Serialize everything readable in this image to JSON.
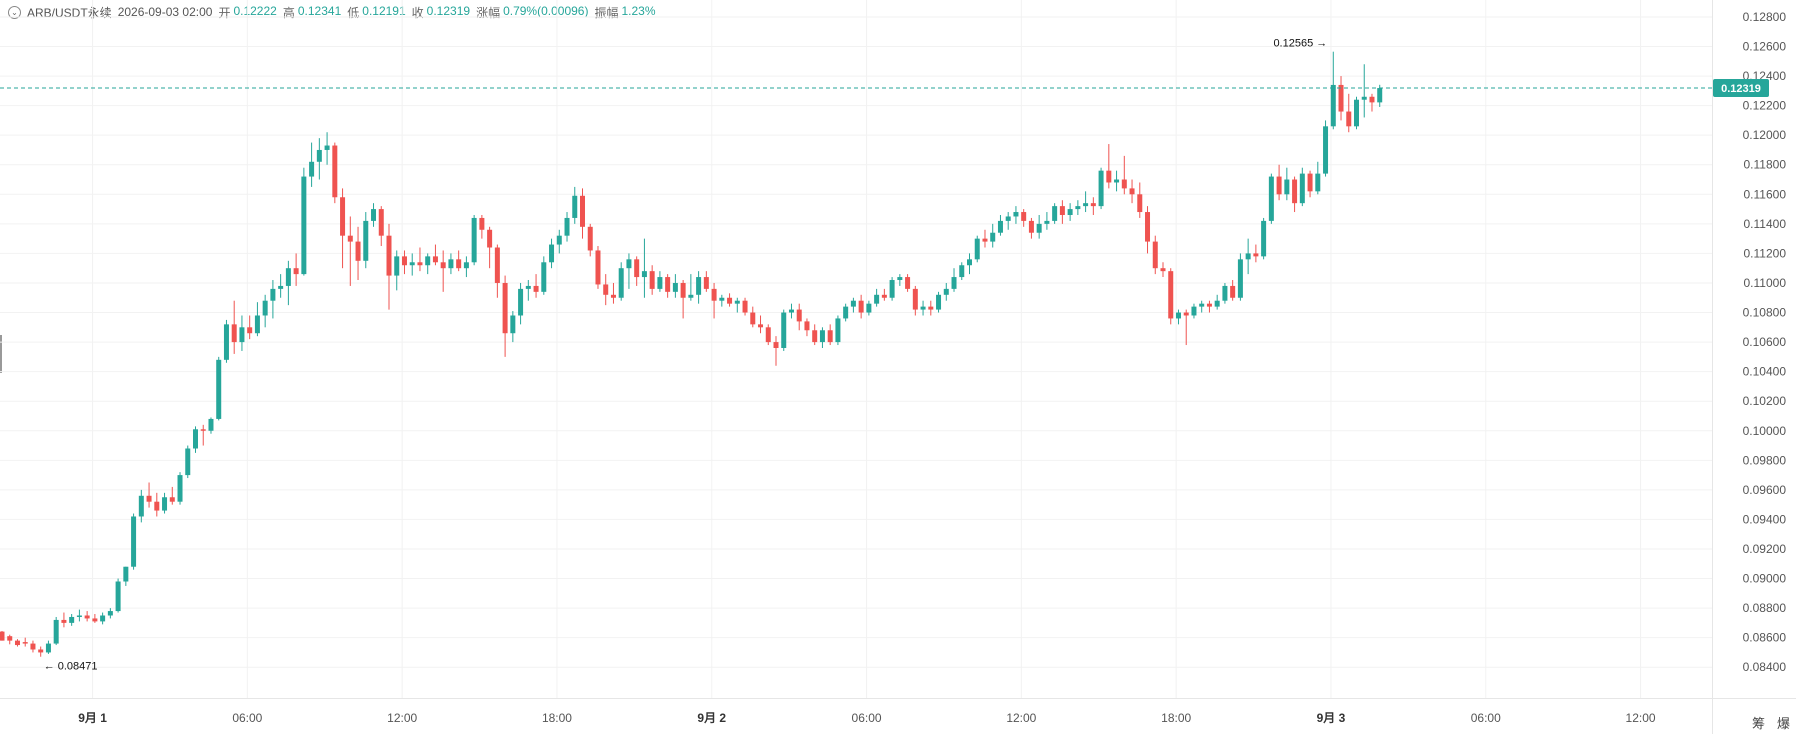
{
  "header": {
    "symbol": "ARB/USDT永续",
    "datetime": "2026-09-03 02:00",
    "open_label": "开",
    "open": "0.12222",
    "high_label": "高",
    "high": "0.12341",
    "low_label": "低",
    "low": "0.12191",
    "close_label": "收",
    "close": "0.12319",
    "change_label": "涨幅",
    "change": "0.79%(0.00096)",
    "amplitude_label": "振幅",
    "amplitude": "1.23%"
  },
  "axis_icons": {
    "left": "筹",
    "right": "爆"
  },
  "colors": {
    "up": "#26a69a",
    "down": "#ef5350",
    "grid": "#f2f2f2",
    "current": "#26a69a"
  },
  "chart_data": {
    "type": "candlestick",
    "interval": "1h",
    "y_axis": {
      "range": [
        0.083,
        0.1282
      ],
      "ticks": [
        "0.12800",
        "0.12600",
        "0.12400",
        "0.12200",
        "0.12000",
        "0.11800",
        "0.11600",
        "0.11400",
        "0.11200",
        "0.11000",
        "0.10800",
        "0.10600",
        "0.10400",
        "0.10200",
        "0.10000",
        "0.09800",
        "0.09600",
        "0.09400",
        "0.09200",
        "0.09000",
        "0.08800",
        "0.08600",
        "0.08400"
      ]
    },
    "x_axis": {
      "ticks": [
        {
          "label": "9月 1",
          "bold": true
        },
        {
          "label": "06:00",
          "bold": false
        },
        {
          "label": "12:00",
          "bold": false
        },
        {
          "label": "18:00",
          "bold": false
        },
        {
          "label": "9月 2",
          "bold": true
        },
        {
          "label": "06:00",
          "bold": false
        },
        {
          "label": "12:00",
          "bold": false
        },
        {
          "label": "18:00",
          "bold": false
        },
        {
          "label": "9月 3",
          "bold": true
        },
        {
          "label": "06:00",
          "bold": false
        },
        {
          "label": "12:00",
          "bold": false
        }
      ]
    },
    "current_price": "0.12319",
    "annotations": {
      "high": "0.12565",
      "low": "0.08471"
    },
    "candles": [
      [
        0.08641,
        0.08645,
        0.0858,
        0.0858
      ],
      [
        0.0861,
        0.0862,
        0.08555,
        0.0858
      ],
      [
        0.0858,
        0.0859,
        0.0854,
        0.0855
      ],
      [
        0.0857,
        0.086,
        0.0854,
        0.0856
      ],
      [
        0.0856,
        0.0858,
        0.085,
        0.0852
      ],
      [
        0.0852,
        0.0854,
        0.08471,
        0.085
      ],
      [
        0.085,
        0.0858,
        0.0849,
        0.0856
      ],
      [
        0.0856,
        0.0874,
        0.0855,
        0.0872
      ],
      [
        0.0872,
        0.0877,
        0.0867,
        0.087
      ],
      [
        0.087,
        0.0876,
        0.0868,
        0.0874
      ],
      [
        0.0874,
        0.0879,
        0.0871,
        0.0875
      ],
      [
        0.0875,
        0.0878,
        0.0871,
        0.0873
      ],
      [
        0.0873,
        0.0876,
        0.087,
        0.0871
      ],
      [
        0.0871,
        0.0877,
        0.0869,
        0.0875
      ],
      [
        0.0875,
        0.088,
        0.0873,
        0.0878
      ],
      [
        0.0878,
        0.09,
        0.0877,
        0.0898
      ],
      [
        0.0898,
        0.0908,
        0.0895,
        0.0908
      ],
      [
        0.0908,
        0.0944,
        0.0906,
        0.0942
      ],
      [
        0.0942,
        0.096,
        0.0938,
        0.0956
      ],
      [
        0.0956,
        0.0965,
        0.0948,
        0.0952
      ],
      [
        0.0952,
        0.0958,
        0.0942,
        0.0946
      ],
      [
        0.0946,
        0.0958,
        0.0944,
        0.0955
      ],
      [
        0.0955,
        0.0962,
        0.095,
        0.0952
      ],
      [
        0.0952,
        0.0972,
        0.095,
        0.097
      ],
      [
        0.097,
        0.099,
        0.0968,
        0.0988
      ],
      [
        0.0988,
        0.1003,
        0.0985,
        0.1001
      ],
      [
        0.1001,
        0.1004,
        0.099,
        0.1
      ],
      [
        0.1,
        0.1009,
        0.0998,
        0.1008
      ],
      [
        0.1008,
        0.105,
        0.1007,
        0.1048
      ],
      [
        0.1048,
        0.1075,
        0.1046,
        0.1072
      ],
      [
        0.1072,
        0.1088,
        0.1052,
        0.106
      ],
      [
        0.106,
        0.1078,
        0.1054,
        0.107
      ],
      [
        0.107,
        0.1078,
        0.1062,
        0.1066
      ],
      [
        0.1066,
        0.1087,
        0.1064,
        0.1078
      ],
      [
        0.1078,
        0.1092,
        0.107,
        0.1088
      ],
      [
        0.1088,
        0.1102,
        0.1076,
        0.1096
      ],
      [
        0.1096,
        0.1106,
        0.109,
        0.1098
      ],
      [
        0.1098,
        0.1115,
        0.1085,
        0.111
      ],
      [
        0.111,
        0.112,
        0.1098,
        0.1106
      ],
      [
        0.1106,
        0.1178,
        0.1105,
        0.1172
      ],
      [
        0.1172,
        0.1195,
        0.1165,
        0.1182
      ],
      [
        0.1182,
        0.1198,
        0.117,
        0.119
      ],
      [
        0.119,
        0.1202,
        0.118,
        0.1193
      ],
      [
        0.1193,
        0.1195,
        0.1154,
        0.1158
      ],
      [
        0.1158,
        0.1164,
        0.111,
        0.1132
      ],
      [
        0.1132,
        0.1145,
        0.1098,
        0.1128
      ],
      [
        0.1128,
        0.1138,
        0.1102,
        0.1115
      ],
      [
        0.1115,
        0.1148,
        0.111,
        0.1142
      ],
      [
        0.1142,
        0.1154,
        0.1138,
        0.115
      ],
      [
        0.115,
        0.1152,
        0.1125,
        0.1132
      ],
      [
        0.1132,
        0.114,
        0.1082,
        0.1105
      ],
      [
        0.1105,
        0.1122,
        0.1095,
        0.1118
      ],
      [
        0.1118,
        0.1122,
        0.1106,
        0.1112
      ],
      [
        0.1112,
        0.112,
        0.1105,
        0.1114
      ],
      [
        0.1114,
        0.1124,
        0.1108,
        0.1112
      ],
      [
        0.1112,
        0.112,
        0.1106,
        0.1118
      ],
      [
        0.1118,
        0.1126,
        0.1112,
        0.1114
      ],
      [
        0.1114,
        0.1122,
        0.1094,
        0.111
      ],
      [
        0.111,
        0.112,
        0.1106,
        0.1116
      ],
      [
        0.1116,
        0.1122,
        0.1108,
        0.111
      ],
      [
        0.111,
        0.1118,
        0.1104,
        0.1114
      ],
      [
        0.1114,
        0.1146,
        0.1112,
        0.1144
      ],
      [
        0.1144,
        0.1146,
        0.113,
        0.1136
      ],
      [
        0.1136,
        0.1138,
        0.111,
        0.1124
      ],
      [
        0.1124,
        0.1126,
        0.109,
        0.11
      ],
      [
        0.11,
        0.1105,
        0.105,
        0.1066
      ],
      [
        0.1066,
        0.1081,
        0.106,
        0.1078
      ],
      [
        0.1078,
        0.11,
        0.1072,
        0.1096
      ],
      [
        0.1096,
        0.1102,
        0.1088,
        0.1098
      ],
      [
        0.1098,
        0.1106,
        0.109,
        0.1094
      ],
      [
        0.1094,
        0.1118,
        0.1092,
        0.1114
      ],
      [
        0.1114,
        0.113,
        0.111,
        0.1126
      ],
      [
        0.1126,
        0.1136,
        0.112,
        0.1132
      ],
      [
        0.1132,
        0.1148,
        0.1128,
        0.1144
      ],
      [
        0.1144,
        0.1165,
        0.114,
        0.1159
      ],
      [
        0.1159,
        0.1164,
        0.113,
        0.1138
      ],
      [
        0.1138,
        0.114,
        0.1118,
        0.1122
      ],
      [
        0.1122,
        0.1125,
        0.1096,
        0.1099
      ],
      [
        0.1099,
        0.1106,
        0.1085,
        0.1092
      ],
      [
        0.1092,
        0.11,
        0.1086,
        0.109
      ],
      [
        0.109,
        0.1114,
        0.1088,
        0.111
      ],
      [
        0.111,
        0.112,
        0.1096,
        0.1116
      ],
      [
        0.1116,
        0.1118,
        0.1098,
        0.1104
      ],
      [
        0.1104,
        0.113,
        0.109,
        0.1108
      ],
      [
        0.1108,
        0.1112,
        0.1092,
        0.1096
      ],
      [
        0.1096,
        0.1108,
        0.1094,
        0.1104
      ],
      [
        0.1104,
        0.1106,
        0.109,
        0.1094
      ],
      [
        0.1094,
        0.1106,
        0.109,
        0.11
      ],
      [
        0.11,
        0.1102,
        0.1076,
        0.109
      ],
      [
        0.109,
        0.1106,
        0.1088,
        0.1092
      ],
      [
        0.1092,
        0.1108,
        0.1086,
        0.1104
      ],
      [
        0.1104,
        0.1108,
        0.1094,
        0.1096
      ],
      [
        0.1096,
        0.11,
        0.1076,
        0.1088
      ],
      [
        0.1088,
        0.1092,
        0.1084,
        0.109
      ],
      [
        0.109,
        0.1093,
        0.1084,
        0.1086
      ],
      [
        0.1086,
        0.109,
        0.108,
        0.1088
      ],
      [
        0.1088,
        0.109,
        0.1078,
        0.108
      ],
      [
        0.108,
        0.1084,
        0.107,
        0.1072
      ],
      [
        0.1072,
        0.1078,
        0.1066,
        0.107
      ],
      [
        0.107,
        0.1072,
        0.1058,
        0.106
      ],
      [
        0.106,
        0.1064,
        0.1044,
        0.1056
      ],
      [
        0.1056,
        0.1082,
        0.1054,
        0.108
      ],
      [
        0.108,
        0.1086,
        0.1076,
        0.1082
      ],
      [
        0.1082,
        0.1086,
        0.1068,
        0.1074
      ],
      [
        0.1074,
        0.1076,
        0.1064,
        0.1068
      ],
      [
        0.1068,
        0.1072,
        0.1058,
        0.106
      ],
      [
        0.106,
        0.107,
        0.1056,
        0.1068
      ],
      [
        0.1068,
        0.1072,
        0.1058,
        0.106
      ],
      [
        0.106,
        0.1078,
        0.1058,
        0.1076
      ],
      [
        0.1076,
        0.1086,
        0.1074,
        0.1084
      ],
      [
        0.1084,
        0.109,
        0.108,
        0.1088
      ],
      [
        0.1088,
        0.1092,
        0.1076,
        0.108
      ],
      [
        0.108,
        0.1088,
        0.1078,
        0.1086
      ],
      [
        0.1086,
        0.1096,
        0.1084,
        0.1092
      ],
      [
        0.1092,
        0.1096,
        0.1088,
        0.109
      ],
      [
        0.109,
        0.1104,
        0.1088,
        0.1102
      ],
      [
        0.1102,
        0.1106,
        0.1098,
        0.1104
      ],
      [
        0.1104,
        0.1106,
        0.1094,
        0.1096
      ],
      [
        0.1096,
        0.1098,
        0.1078,
        0.1082
      ],
      [
        0.1082,
        0.1088,
        0.1078,
        0.1084
      ],
      [
        0.1084,
        0.1088,
        0.1078,
        0.1082
      ],
      [
        0.1082,
        0.1094,
        0.108,
        0.1092
      ],
      [
        0.1092,
        0.11,
        0.1088,
        0.1096
      ],
      [
        0.1096,
        0.111,
        0.1094,
        0.1104
      ],
      [
        0.1104,
        0.1114,
        0.1102,
        0.1112
      ],
      [
        0.1112,
        0.112,
        0.1106,
        0.1116
      ],
      [
        0.1116,
        0.1132,
        0.1114,
        0.113
      ],
      [
        0.113,
        0.1136,
        0.1124,
        0.1128
      ],
      [
        0.1128,
        0.114,
        0.1124,
        0.1134
      ],
      [
        0.1134,
        0.1146,
        0.1132,
        0.1142
      ],
      [
        0.1142,
        0.1148,
        0.1136,
        0.1145
      ],
      [
        0.1145,
        0.1152,
        0.114,
        0.1148
      ],
      [
        0.1148,
        0.115,
        0.1138,
        0.1142
      ],
      [
        0.1142,
        0.1144,
        0.113,
        0.1134
      ],
      [
        0.1134,
        0.1146,
        0.113,
        0.114
      ],
      [
        0.114,
        0.1148,
        0.1136,
        0.1142
      ],
      [
        0.1142,
        0.1154,
        0.114,
        0.1152
      ],
      [
        0.1152,
        0.1156,
        0.114,
        0.1146
      ],
      [
        0.1146,
        0.1154,
        0.1142,
        0.115
      ],
      [
        0.115,
        0.1156,
        0.1146,
        0.1152
      ],
      [
        0.1152,
        0.1162,
        0.1148,
        0.1154
      ],
      [
        0.1154,
        0.1158,
        0.1146,
        0.1152
      ],
      [
        0.1152,
        0.1178,
        0.115,
        0.1176
      ],
      [
        0.1176,
        0.1194,
        0.1164,
        0.1168
      ],
      [
        0.1168,
        0.1176,
        0.1162,
        0.117
      ],
      [
        0.117,
        0.1186,
        0.116,
        0.1164
      ],
      [
        0.1164,
        0.117,
        0.1154,
        0.116
      ],
      [
        0.116,
        0.1168,
        0.1144,
        0.1148
      ],
      [
        0.1148,
        0.1152,
        0.112,
        0.1128
      ],
      [
        0.1128,
        0.1132,
        0.1106,
        0.111
      ],
      [
        0.111,
        0.1114,
        0.1104,
        0.1108
      ],
      [
        0.1108,
        0.111,
        0.1072,
        0.1076
      ],
      [
        0.1076,
        0.1082,
        0.1072,
        0.108
      ],
      [
        0.108,
        0.1082,
        0.1058,
        0.1078
      ],
      [
        0.1078,
        0.1086,
        0.1076,
        0.1084
      ],
      [
        0.1084,
        0.1088,
        0.108,
        0.1086
      ],
      [
        0.1086,
        0.1088,
        0.108,
        0.1084
      ],
      [
        0.1084,
        0.1092,
        0.1082,
        0.1088
      ],
      [
        0.1088,
        0.11,
        0.1086,
        0.1098
      ],
      [
        0.1098,
        0.1102,
        0.1088,
        0.109
      ],
      [
        0.109,
        0.112,
        0.1088,
        0.1116
      ],
      [
        0.1116,
        0.113,
        0.1106,
        0.112
      ],
      [
        0.112,
        0.1126,
        0.1114,
        0.1118
      ],
      [
        0.1118,
        0.1144,
        0.1116,
        0.1142
      ],
      [
        0.1142,
        0.1174,
        0.114,
        0.1172
      ],
      [
        0.1172,
        0.118,
        0.1156,
        0.116
      ],
      [
        0.116,
        0.1178,
        0.1156,
        0.117
      ],
      [
        0.117,
        0.1172,
        0.1148,
        0.1154
      ],
      [
        0.1154,
        0.1178,
        0.1152,
        0.1174
      ],
      [
        0.1174,
        0.1176,
        0.1158,
        0.1162
      ],
      [
        0.1162,
        0.1182,
        0.116,
        0.1174
      ],
      [
        0.1174,
        0.121,
        0.1172,
        0.1206
      ],
      [
        0.1206,
        0.12565,
        0.1204,
        0.1234
      ],
      [
        0.1234,
        0.124,
        0.121,
        0.1216
      ],
      [
        0.1216,
        0.1228,
        0.1202,
        0.1206
      ],
      [
        0.1206,
        0.1226,
        0.1204,
        0.1224
      ],
      [
        0.1224,
        0.1248,
        0.1212,
        0.1226
      ],
      [
        0.1226,
        0.1228,
        0.1216,
        0.12222
      ],
      [
        0.12222,
        0.12341,
        0.12191,
        0.12319
      ]
    ]
  }
}
